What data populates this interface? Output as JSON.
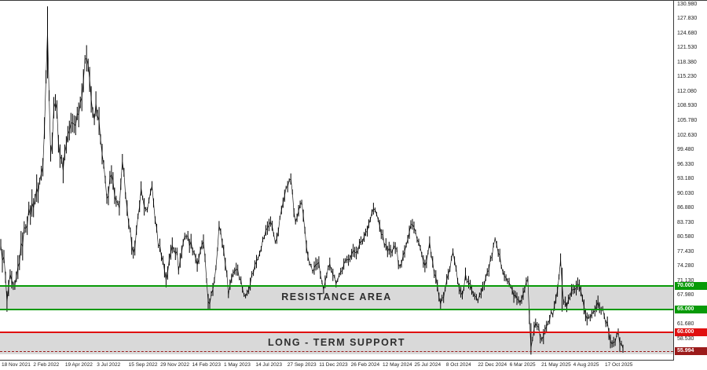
{
  "window": {
    "background": "#ffffff",
    "axis_line_color": "#3a3a3a"
  },
  "chart_data": {
    "type": "ohlc-bar",
    "title": "",
    "xlabel": "",
    "ylabel": "",
    "grid": false,
    "legend_position": "none",
    "x_tick_labels": [
      "18 Nov 2021",
      "2 Feb 2022",
      "19 Apr 2022",
      "3 Jul 2022",
      "15 Sep 2022",
      "29 Nov 2022",
      "14 Feb 2023",
      "1 May 2023",
      "14 Jul 2023",
      "27 Sep 2023",
      "11 Dec 2023",
      "26 Feb 2024",
      "12 May 2024",
      "25 Jul 2024",
      "8 Oct 2024",
      "22 Dec 2024",
      "6 Mar 2025",
      "21 May 2025",
      "4 Aug 2025",
      "17 Oct 2025"
    ],
    "ylim": [
      53.9,
      131.8
    ],
    "y_ticks": [
      130.98,
      127.83,
      124.68,
      121.53,
      118.38,
      115.23,
      112.08,
      108.93,
      105.78,
      102.63,
      99.48,
      96.33,
      93.18,
      90.03,
      86.88,
      83.73,
      80.58,
      77.43,
      74.28,
      71.13,
      67.98,
      64.83,
      61.68,
      58.53,
      55.38
    ],
    "series": {
      "name": "price",
      "color": "#000000",
      "anchors": [
        [
          0.0,
          78.0
        ],
        [
          0.006,
          75.0
        ],
        [
          0.01,
          65.8
        ],
        [
          0.014,
          71.5
        ],
        [
          0.022,
          68.3
        ],
        [
          0.03,
          76.0
        ],
        [
          0.04,
          83.5
        ],
        [
          0.052,
          88.0
        ],
        [
          0.06,
          91.0
        ],
        [
          0.068,
          96.0
        ],
        [
          0.075,
          127.0
        ],
        [
          0.078,
          109.0
        ],
        [
          0.081,
          97.0
        ],
        [
          0.087,
          112.5
        ],
        [
          0.094,
          100.0
        ],
        [
          0.099,
          95.0
        ],
        [
          0.106,
          102.0
        ],
        [
          0.112,
          104.5
        ],
        [
          0.12,
          105.5
        ],
        [
          0.128,
          110.0
        ],
        [
          0.139,
          121.5
        ],
        [
          0.149,
          104.5
        ],
        [
          0.154,
          110.0
        ],
        [
          0.164,
          96.5
        ],
        [
          0.172,
          88.5
        ],
        [
          0.177,
          94.0
        ],
        [
          0.19,
          86.5
        ],
        [
          0.196,
          97.0
        ],
        [
          0.205,
          83.0
        ],
        [
          0.215,
          77.0
        ],
        [
          0.225,
          91.0
        ],
        [
          0.235,
          85.0
        ],
        [
          0.242,
          92.5
        ],
        [
          0.252,
          80.0
        ],
        [
          0.258,
          77.3
        ],
        [
          0.266,
          71.5
        ],
        [
          0.276,
          79.5
        ],
        [
          0.283,
          77.0
        ],
        [
          0.286,
          73.8
        ],
        [
          0.296,
          81.5
        ],
        [
          0.31,
          78.0
        ],
        [
          0.317,
          74.2
        ],
        [
          0.325,
          80.3
        ],
        [
          0.335,
          64.8
        ],
        [
          0.345,
          73.0
        ],
        [
          0.351,
          83.2
        ],
        [
          0.36,
          76.5
        ],
        [
          0.366,
          68.8
        ],
        [
          0.373,
          73.0
        ],
        [
          0.38,
          74.2
        ],
        [
          0.393,
          67.3
        ],
        [
          0.403,
          72.0
        ],
        [
          0.414,
          76.8
        ],
        [
          0.424,
          81.0
        ],
        [
          0.433,
          84.3
        ],
        [
          0.443,
          79.2
        ],
        [
          0.455,
          90.0
        ],
        [
          0.467,
          93.5
        ],
        [
          0.473,
          83.0
        ],
        [
          0.483,
          88.6
        ],
        [
          0.492,
          77.5
        ],
        [
          0.501,
          73.0
        ],
        [
          0.51,
          75.5
        ],
        [
          0.519,
          68.8
        ],
        [
          0.529,
          75.3
        ],
        [
          0.538,
          70.9
        ],
        [
          0.548,
          73.5
        ],
        [
          0.56,
          76.5
        ],
        [
          0.572,
          77.8
        ],
        [
          0.582,
          80.0
        ],
        [
          0.59,
          83.0
        ],
        [
          0.599,
          86.8
        ],
        [
          0.604,
          85.5
        ],
        [
          0.61,
          82.5
        ],
        [
          0.617,
          79.0
        ],
        [
          0.628,
          77.0
        ],
        [
          0.636,
          79.5
        ],
        [
          0.64,
          73.4
        ],
        [
          0.65,
          78.5
        ],
        [
          0.66,
          83.8
        ],
        [
          0.67,
          80.5
        ],
        [
          0.683,
          73.0
        ],
        [
          0.688,
          79.8
        ],
        [
          0.695,
          74.0
        ],
        [
          0.708,
          66.0
        ],
        [
          0.715,
          70.0
        ],
        [
          0.727,
          77.3
        ],
        [
          0.735,
          71.0
        ],
        [
          0.741,
          67.5
        ],
        [
          0.747,
          72.2
        ],
        [
          0.755,
          69.5
        ],
        [
          0.767,
          67.3
        ],
        [
          0.775,
          70.0
        ],
        [
          0.785,
          74.0
        ],
        [
          0.794,
          79.8
        ],
        [
          0.805,
          74.5
        ],
        [
          0.815,
          71.0
        ],
        [
          0.823,
          68.8
        ],
        [
          0.832,
          66.3
        ],
        [
          0.84,
          68.0
        ],
        [
          0.847,
          71.5
        ],
        [
          0.852,
          57.0
        ],
        [
          0.857,
          61.5
        ],
        [
          0.861,
          62.8
        ],
        [
          0.869,
          57.5
        ],
        [
          0.875,
          61.0
        ],
        [
          0.88,
          62.5
        ],
        [
          0.888,
          64.5
        ],
        [
          0.894,
          68.0
        ],
        [
          0.9,
          75.5
        ],
        [
          0.903,
          67.5
        ],
        [
          0.91,
          65.5
        ],
        [
          0.918,
          68.5
        ],
        [
          0.929,
          70.0
        ],
        [
          0.937,
          65.5
        ],
        [
          0.943,
          63.0
        ],
        [
          0.952,
          64.0
        ],
        [
          0.96,
          66.5
        ],
        [
          0.968,
          64.8
        ],
        [
          0.975,
          61.5
        ],
        [
          0.98,
          58.5
        ],
        [
          0.985,
          57.8
        ],
        [
          0.992,
          59.5
        ],
        [
          1.0,
          56.0
        ]
      ]
    },
    "spikes": [
      {
        "f": 0.075,
        "high": 130.6,
        "low": 115.0
      },
      {
        "f": 0.852,
        "high": 62.0,
        "low": 55.2
      },
      {
        "f": 0.903,
        "high": 74.0,
        "low": 64.5
      }
    ],
    "annotations": {
      "resistance": {
        "label": "RESISTANCE AREA",
        "top_price": 70.0,
        "bottom_price": 65.0,
        "top_tag": "70.000",
        "bottom_tag": "65.000",
        "line_color": "#089a08",
        "band_color": "rgba(128,128,128,0.30)"
      },
      "support": {
        "label": "LONG - TERM SUPPORT",
        "line_price": 60.0,
        "band_bottom_price": 55.3,
        "tag": "60.000",
        "line_color": "#e01010",
        "band_color": "rgba(128,128,128,0.30)"
      },
      "current_price": {
        "value": "55.994",
        "price": 55.99,
        "color": "#9b1b1b"
      }
    }
  }
}
